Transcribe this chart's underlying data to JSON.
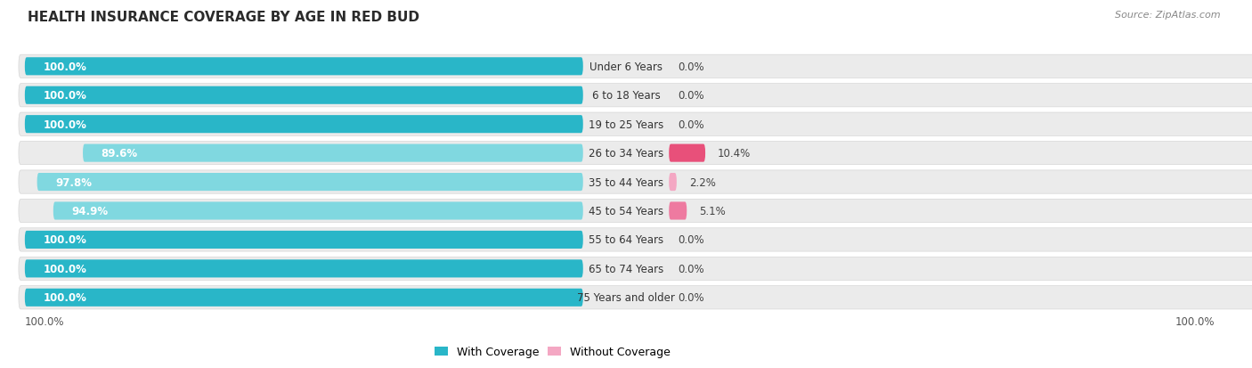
{
  "title": "HEALTH INSURANCE COVERAGE BY AGE IN RED BUD",
  "source": "Source: ZipAtlas.com",
  "categories": [
    "Under 6 Years",
    "6 to 18 Years",
    "19 to 25 Years",
    "26 to 34 Years",
    "35 to 44 Years",
    "45 to 54 Years",
    "55 to 64 Years",
    "65 to 74 Years",
    "75 Years and older"
  ],
  "with_coverage": [
    100.0,
    100.0,
    100.0,
    89.6,
    97.8,
    94.9,
    100.0,
    100.0,
    100.0
  ],
  "without_coverage": [
    0.0,
    0.0,
    0.0,
    10.4,
    2.2,
    5.1,
    0.0,
    0.0,
    0.0
  ],
  "color_with_full": "#29b6c8",
  "color_with_partial": "#80d8e0",
  "color_without_low": "#f4a7c3",
  "color_without_high": "#e8507a",
  "color_row_bg_light": "#f0f0f0",
  "color_row_bg_dark": "#e4e4e4",
  "title_fontsize": 11,
  "label_fontsize": 8.5,
  "legend_fontsize": 9,
  "source_fontsize": 8
}
